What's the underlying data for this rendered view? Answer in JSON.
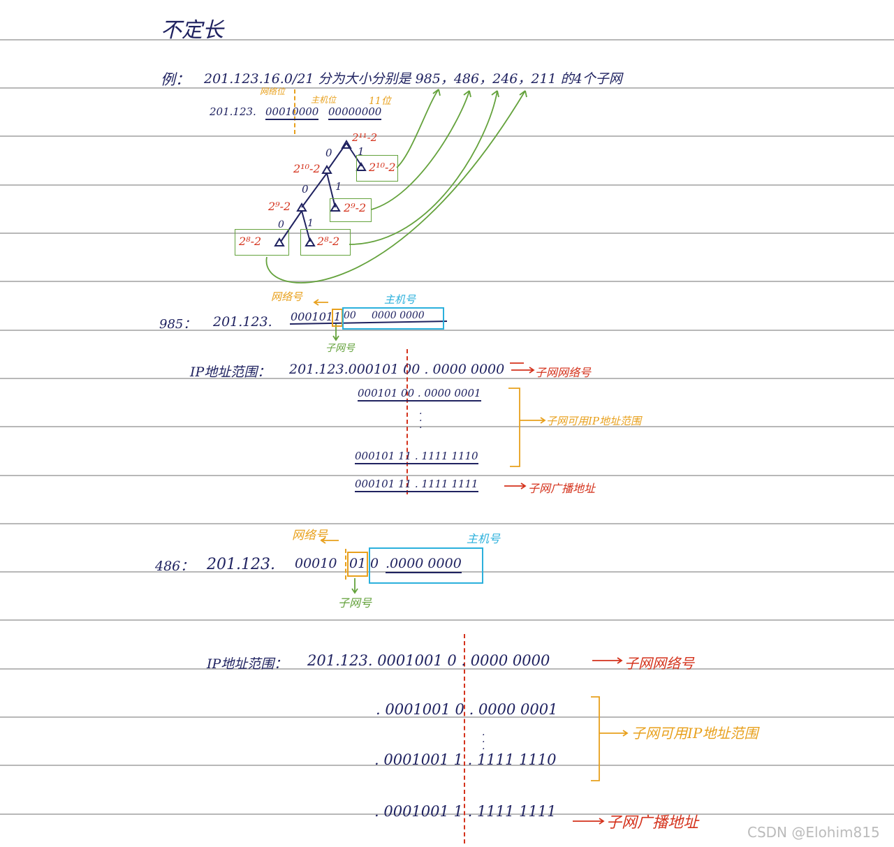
{
  "heading": "不定长",
  "example": {
    "prefix": "例：",
    "text": "201.123.16.0/21 分为大小分别是 985，486，246，211 的4个子网"
  },
  "split": {
    "net_label": "网络位",
    "host_label": "主机位",
    "bits_label": "11位",
    "addr_prefix": "201.123.",
    "octet3": "00010000",
    "octet4": "00000000"
  },
  "tree": {
    "root": "2¹¹-2",
    "l1_left": "2¹⁰-2",
    "l1_right": "2¹⁰-2",
    "l2_left": "2⁹-2",
    "l2_right": "2⁹-2",
    "l3_left": "2⁸-2",
    "l3_right": "2⁸-2",
    "bit0": "0",
    "bit1": "1"
  },
  "sub985": {
    "label": "985：",
    "addr_prefix": "201.123.",
    "net": "000101",
    "sub": "1",
    "host3": "00",
    "host4": "0000 0000",
    "net_tag": "网络号",
    "host_tag": "主机号",
    "sub_tag": "子网号",
    "range_label": "IP地址范围：",
    "first": "201.123.000101 00 . 0000 0000",
    "first_tag": "子网网络号",
    "usable_start": "000101 00 . 0000 0001",
    "usable_end": "000101 11 . 1111 1110",
    "usable_tag": "子网可用IP地址范围",
    "broadcast": "000101 11 . 1111 1111",
    "broadcast_tag": "子网广播地址"
  },
  "sub486": {
    "label": "486：",
    "addr_prefix": "201.123.",
    "net": "00010",
    "sub": "01",
    "host3": "0",
    "host4": ".0000 0000",
    "net_tag": "网络号",
    "host_tag": "主机号",
    "sub_tag": "子网号",
    "range_label": "IP地址范围：",
    "first": "201.123. 0001001 0 . 0000 0000",
    "first_tag": "子网网络号",
    "usable_start": ". 0001001 0 . 0000 0001",
    "usable_end": ". 0001001 1 . 1111 1110",
    "usable_tag": "子网可用IP地址范围",
    "broadcast": ". 0001001 1 . 1111 1111",
    "broadcast_tag": "子网广播地址"
  },
  "watermark": "CSDN @Elohim815",
  "colors": {
    "ink": "#1f2260",
    "red": "#d4321c",
    "orange": "#e8a01c",
    "green": "#64a23c",
    "cyan": "#2bb0dc",
    "rule": "#b8b8b8"
  }
}
